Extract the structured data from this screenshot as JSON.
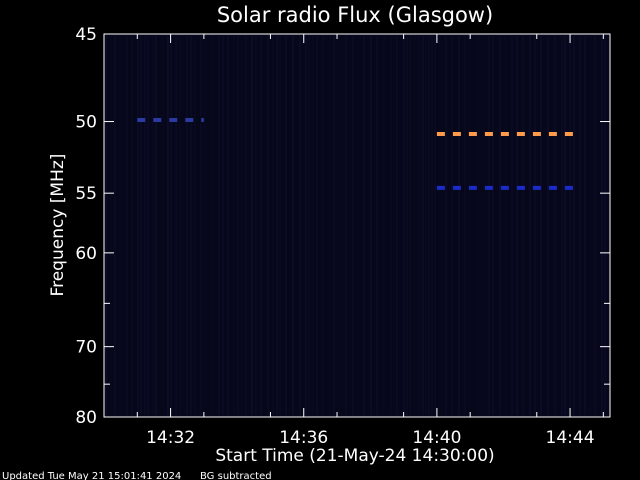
{
  "chart_data": {
    "type": "heatmap",
    "title": "Solar radio Flux (Glasgow)",
    "xlabel": "Start Time (21-May-24 14:30:00)",
    "ylabel": "Frequency [MHz]",
    "xlim_minutes": [
      0,
      15.2
    ],
    "ylim_mhz": [
      45,
      80
    ],
    "x_ticks": [
      {
        "minute": 2,
        "label": "14:32"
      },
      {
        "minute": 6,
        "label": "14:36"
      },
      {
        "minute": 10,
        "label": "14:40"
      },
      {
        "minute": 14,
        "label": "14:44"
      }
    ],
    "y_ticks": [
      {
        "mhz": 45,
        "label": "45"
      },
      {
        "mhz": 50,
        "label": "50"
      },
      {
        "mhz": 55,
        "label": "55"
      },
      {
        "mhz": 60,
        "label": "60"
      },
      {
        "mhz": 70,
        "label": "70"
      },
      {
        "mhz": 80,
        "label": "80"
      }
    ],
    "features": [
      {
        "name": "interference-band",
        "freq_mhz": 50.8,
        "start_min": 10.0,
        "end_min": 14.2,
        "color": "#ff9a4a",
        "dashed": true
      },
      {
        "name": "interference-band",
        "freq_mhz": 54.6,
        "start_min": 10.0,
        "end_min": 14.2,
        "color": "#1a2cc8",
        "dashed": true
      },
      {
        "name": "weak-band",
        "freq_mhz": 49.9,
        "start_min": 1.0,
        "end_min": 3.0,
        "color": "#2a3aa0",
        "dashed": true
      }
    ],
    "background_color": "#07071c",
    "axis_color": "#ffffff"
  },
  "footer": {
    "updated": "Updated Tue May 21 15:01:41 2024",
    "note": "BG subtracted"
  }
}
